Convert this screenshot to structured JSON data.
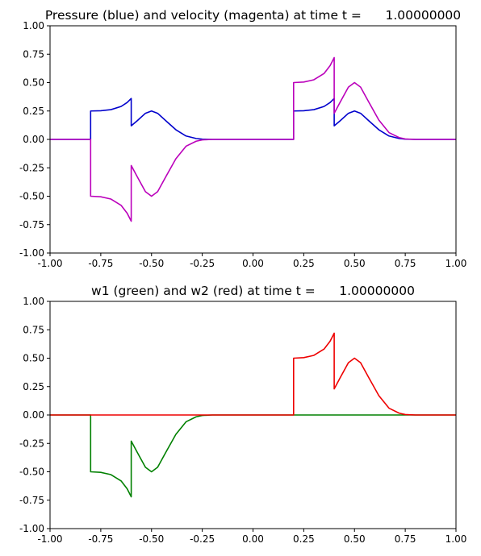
{
  "chart_data": [
    {
      "type": "line",
      "title": "Pressure (blue) and velocity (magenta) at time t =      1.00000000",
      "xlabel": "",
      "ylabel": "",
      "xlim": [
        -1.0,
        1.0
      ],
      "ylim": [
        -1.0,
        1.0
      ],
      "xticks": [
        "-1.00",
        "-0.75",
        "-0.50",
        "-0.25",
        "0.00",
        "0.25",
        "0.50",
        "0.75",
        "1.00"
      ],
      "yticks": [
        "-1.00",
        "-0.75",
        "-0.50",
        "-0.25",
        "0.00",
        "0.25",
        "0.50",
        "0.75",
        "1.00"
      ],
      "grid": false,
      "colors": {
        "pressure": "#0000cc",
        "velocity": "#bb00bb"
      },
      "series": [
        {
          "color": "#0000cc",
          "x": [
            -1.0,
            -0.8,
            -0.8,
            -0.75,
            -0.7,
            -0.65,
            -0.62,
            -0.6,
            -0.6,
            -0.57,
            -0.53,
            -0.5,
            -0.47,
            -0.43,
            -0.38,
            -0.33,
            -0.28,
            -0.25,
            -0.2,
            0.0,
            0.2,
            0.2,
            0.25,
            0.3,
            0.35,
            0.38,
            0.4,
            0.4,
            0.43,
            0.47,
            0.5,
            0.53,
            0.57,
            0.62,
            0.67,
            0.72,
            0.75,
            0.8,
            1.0
          ],
          "y": [
            0.0,
            0.0,
            0.25,
            0.252,
            0.262,
            0.29,
            0.325,
            0.36,
            0.12,
            0.165,
            0.23,
            0.25,
            0.23,
            0.165,
            0.085,
            0.03,
            0.008,
            0.002,
            0.0,
            0.0,
            0.0,
            0.25,
            0.252,
            0.262,
            0.29,
            0.325,
            0.36,
            0.12,
            0.165,
            0.23,
            0.25,
            0.23,
            0.165,
            0.085,
            0.03,
            0.008,
            0.002,
            0.0,
            0.0
          ]
        },
        {
          "color": "#bb00bb",
          "x": [
            -1.0,
            -0.8,
            -0.8,
            -0.75,
            -0.7,
            -0.65,
            -0.62,
            -0.6,
            -0.6,
            -0.57,
            -0.53,
            -0.5,
            -0.47,
            -0.43,
            -0.38,
            -0.33,
            -0.28,
            -0.25,
            -0.2,
            0.0,
            0.2,
            0.2,
            0.25,
            0.3,
            0.35,
            0.38,
            0.4,
            0.4,
            0.43,
            0.47,
            0.5,
            0.53,
            0.57,
            0.62,
            0.67,
            0.72,
            0.75,
            0.8,
            1.0
          ],
          "y": [
            0.0,
            0.0,
            -0.5,
            -0.505,
            -0.525,
            -0.58,
            -0.65,
            -0.72,
            -0.23,
            -0.33,
            -0.46,
            -0.5,
            -0.46,
            -0.33,
            -0.17,
            -0.06,
            -0.016,
            -0.004,
            0.0,
            0.0,
            0.0,
            0.5,
            0.505,
            0.525,
            0.58,
            0.65,
            0.72,
            0.23,
            0.33,
            0.46,
            0.5,
            0.46,
            0.33,
            0.17,
            0.06,
            0.016,
            0.004,
            0.0,
            0.0
          ]
        }
      ]
    },
    {
      "type": "line",
      "title": "w1 (green) and w2 (red) at time t =      1.00000000",
      "xlabel": "",
      "ylabel": "",
      "xlim": [
        -1.0,
        1.0
      ],
      "ylim": [
        -1.0,
        1.0
      ],
      "xticks": [
        "-1.00",
        "-0.75",
        "-0.50",
        "-0.25",
        "0.00",
        "0.25",
        "0.50",
        "0.75",
        "1.00"
      ],
      "yticks": [
        "-1.00",
        "-0.75",
        "-0.50",
        "-0.25",
        "0.00",
        "0.25",
        "0.50",
        "0.75",
        "1.00"
      ],
      "grid": false,
      "colors": {
        "w1": "#008000",
        "w2": "#ee0000"
      },
      "series": [
        {
          "color": "#008000",
          "x": [
            -1.0,
            -0.8,
            -0.8,
            -0.75,
            -0.7,
            -0.65,
            -0.62,
            -0.6,
            -0.6,
            -0.57,
            -0.53,
            -0.5,
            -0.47,
            -0.43,
            -0.38,
            -0.33,
            -0.28,
            -0.25,
            -0.2,
            1.0
          ],
          "y": [
            0.0,
            0.0,
            -0.5,
            -0.505,
            -0.525,
            -0.58,
            -0.65,
            -0.72,
            -0.23,
            -0.33,
            -0.46,
            -0.5,
            -0.46,
            -0.33,
            -0.17,
            -0.06,
            -0.016,
            -0.004,
            0.0,
            0.0
          ]
        },
        {
          "color": "#ee0000",
          "x": [
            -1.0,
            0.2,
            0.2,
            0.25,
            0.3,
            0.35,
            0.38,
            0.4,
            0.4,
            0.43,
            0.47,
            0.5,
            0.53,
            0.57,
            0.62,
            0.67,
            0.72,
            0.75,
            0.8,
            1.0
          ],
          "y": [
            0.0,
            0.0,
            0.5,
            0.505,
            0.525,
            0.58,
            0.65,
            0.72,
            0.23,
            0.33,
            0.46,
            0.5,
            0.46,
            0.33,
            0.17,
            0.06,
            0.016,
            0.004,
            0.0,
            0.0
          ]
        }
      ]
    }
  ]
}
